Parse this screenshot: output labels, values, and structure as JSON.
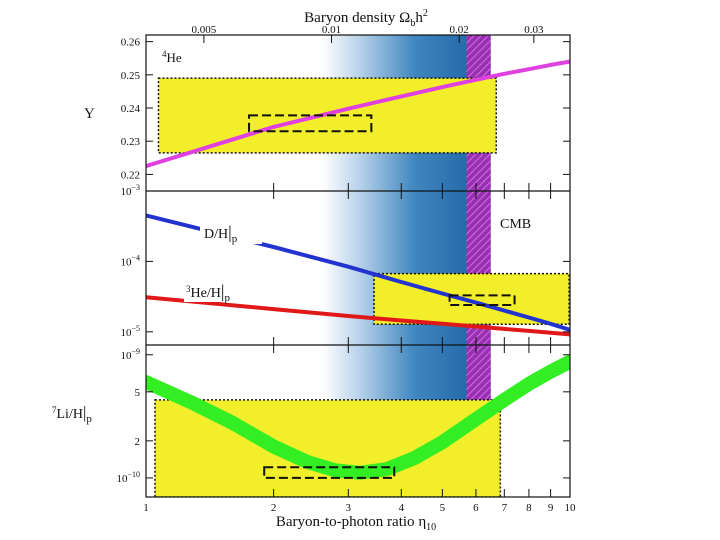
{
  "colors": {
    "cmb": "#9b2fb4",
    "he4_curve": "#e040e0",
    "deuterium_curve": "#2233d0",
    "he3_curve": "#e01818",
    "li7_band": "#33ee22",
    "obs_box": "#f2ef2a",
    "bbn_band_dark": "#1a5fa0",
    "bbn_band_light": "#ffffff"
  },
  "chart_data": {
    "type": "line",
    "title": "",
    "top_axis": {
      "label_parts": {
        "a": "Bary",
        "b": "on density ",
        "omega": "Ω",
        "sub": "b",
        "c": "h",
        "sup": "2"
      },
      "ticks": [
        "0.005",
        "0.01",
        "0.02",
        "0.03"
      ],
      "values": [
        0.005,
        0.01,
        0.02,
        0.03
      ]
    },
    "x_axis": {
      "label_parts": {
        "a": "Bary",
        "b": "on-to-photon ratio ",
        "eta": "η",
        "sub": "10"
      },
      "scale": "log",
      "range": [
        1,
        10
      ],
      "ticks": [
        "1",
        "2",
        "3",
        "4",
        "5",
        "6",
        "7",
        "8",
        "9",
        "10"
      ],
      "values": [
        1,
        2,
        3,
        4,
        5,
        6,
        7,
        8,
        9,
        10
      ]
    },
    "cmb": {
      "label": "CMB",
      "eta_range": [
        5.7,
        6.5
      ]
    },
    "bbn_band": {
      "eta_range": [
        2.6,
        6.5
      ]
    },
    "panels": [
      {
        "name": "helium-4",
        "panel_label": {
          "sup": "4",
          "text": "He"
        },
        "y_label": "Y",
        "y_scale": "linear",
        "y_range": [
          0.215,
          0.262
        ],
        "y_ticks": [
          "0.26",
          "0.25",
          "0.24",
          "0.23",
          "0.22"
        ],
        "y_tick_values": [
          0.26,
          0.25,
          0.24,
          0.23,
          0.22
        ],
        "series": [
          {
            "name": "Y",
            "x": [
              1,
              2,
              3,
              4,
              5,
              6,
              7,
              8,
              9,
              10
            ],
            "y": [
              0.2225,
              0.2343,
              0.2398,
              0.2435,
              0.2463,
              0.2485,
              0.2503,
              0.2517,
              0.253,
              0.254
            ]
          }
        ],
        "obs_box": {
          "x": [
            1.07,
            6.7
          ],
          "y": [
            0.2265,
            0.249
          ]
        },
        "inner_box": {
          "x": [
            1.75,
            3.4
          ],
          "y": [
            0.233,
            0.2378
          ]
        }
      },
      {
        "name": "deuterium-helium-3",
        "y_label": "",
        "y_scale": "log",
        "y_range": [
          6.5e-06,
          0.001
        ],
        "y_ticks": [
          {
            "base": "10",
            "exp": "−3"
          },
          {
            "base": "10",
            "exp": "−4"
          },
          {
            "base": "10",
            "exp": "−5"
          }
        ],
        "y_tick_values": [
          0.001,
          0.0001,
          1e-05
        ],
        "series": [
          {
            "name": "D/H",
            "label_parts": {
              "a": "D/H",
              "b": "p"
            },
            "x": [
              1,
              2,
              3,
              4,
              5,
              6,
              7,
              8,
              9,
              10
            ],
            "y": [
              0.00045,
              0.00016,
              8.4e-05,
              5.1e-05,
              3.5e-05,
              2.6e-05,
              2e-05,
              1.6e-05,
              1.3e-05,
              1.07e-05
            ]
          },
          {
            "name": "3He/H",
            "label_parts": {
              "sup": "3",
              "a": "He/H",
              "b": "p"
            },
            "x": [
              1,
              2,
              3,
              4,
              5,
              6,
              7,
              8,
              9,
              10
            ],
            "y": [
              3.1e-05,
              2.1e-05,
              1.68e-05,
              1.45e-05,
              1.3e-05,
              1.19e-05,
              1.1e-05,
              1.03e-05,
              9.7e-06,
              9.2e-06
            ]
          }
        ],
        "obs_box": {
          "x": [
            3.45,
            9.95
          ],
          "y": [
            1.28e-05,
            6.7e-05
          ]
        },
        "inner_box": {
          "x": [
            5.2,
            7.4
          ],
          "y": [
            2.4e-05,
            3.3e-05
          ]
        }
      },
      {
        "name": "lithium-7",
        "y_label_parts": {
          "sup": "7",
          "a": "Li/H",
          "b": "p"
        },
        "y_scale": "log",
        "y_range": [
          7e-11,
          1.2e-09
        ],
        "y_ticks": [
          {
            "base": "10",
            "exp": "−9"
          },
          {
            "base": "5",
            "exp": ""
          },
          {
            "base": "2",
            "exp": ""
          },
          {
            "base": "10",
            "exp": "−10"
          }
        ],
        "y_tick_values": [
          1e-09,
          5e-10,
          2e-10,
          1e-10
        ],
        "series": [
          {
            "name": "7Li/H",
            "x": [
              1,
              1.3,
              1.6,
              2,
              2.4,
              2.8,
              3.2,
              3.7,
              4.3,
              5,
              6,
              7,
              8,
              9,
              10
            ],
            "y": [
              6e-10,
              4e-10,
              2.8e-10,
              1.8e-10,
              1.35e-10,
              1.15e-10,
              1.1e-10,
              1.18e-10,
              1.45e-10,
              1.95e-10,
              3e-10,
              4.3e-10,
              5.8e-10,
              7.3e-10,
              8.8e-10
            ]
          }
        ],
        "obs_box": {
          "x": [
            1.05,
            6.85
          ],
          "y": [
            7e-11,
            4.3e-10
          ]
        },
        "inner_box": {
          "x": [
            1.9,
            3.85
          ],
          "y": [
            1e-10,
            1.22e-10
          ]
        }
      }
    ]
  }
}
